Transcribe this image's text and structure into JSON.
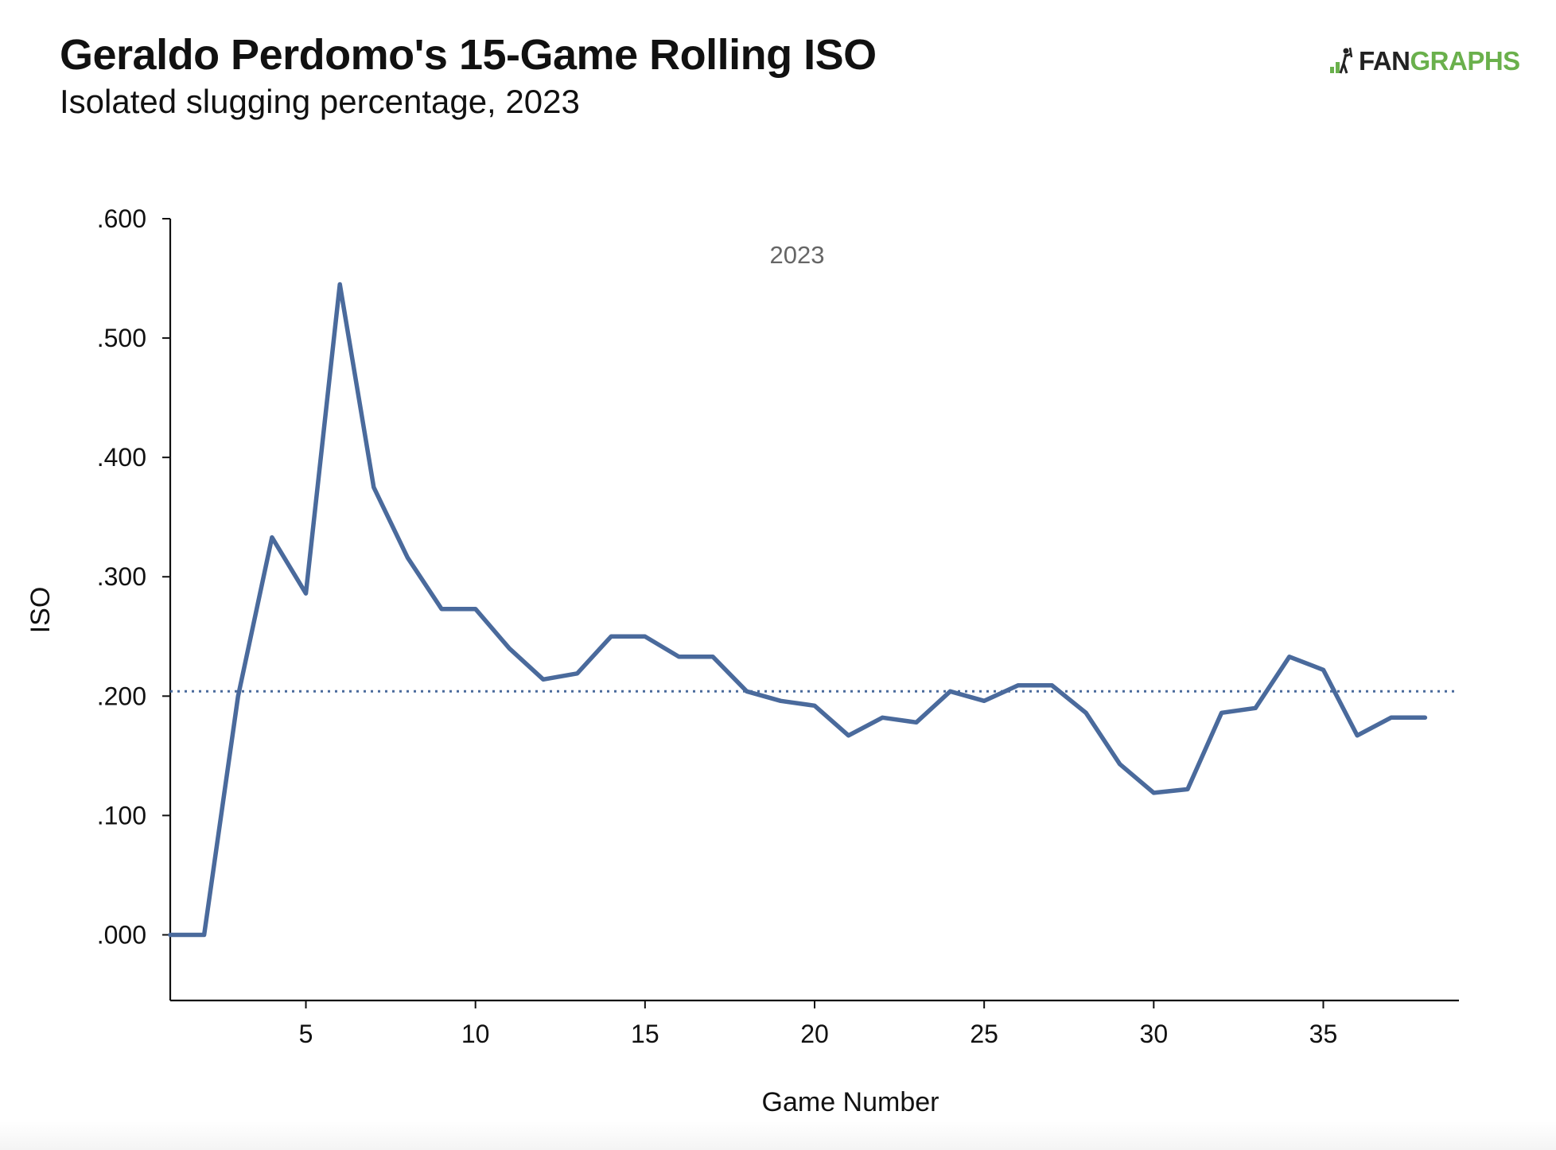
{
  "title": "Geraldo Perdomo's 15-Game Rolling ISO",
  "subtitle": "Isolated slugging percentage, 2023",
  "logo": {
    "text_dark": "FAN",
    "text_green": "GRAPHS",
    "icon": "fangraphs-batter-icon",
    "colors": {
      "dark": "#222222",
      "green": "#6ab04c"
    }
  },
  "chart_data": {
    "type": "line",
    "xlabel": "Game Number",
    "ylabel": "ISO",
    "xlim": [
      1,
      39
    ],
    "ylim": [
      -0.055,
      0.6
    ],
    "x_ticks": [
      5,
      10,
      15,
      20,
      25,
      30,
      35
    ],
    "x_tick_labels": [
      "5",
      "10",
      "15",
      "20",
      "25",
      "30",
      "35"
    ],
    "y_ticks": [
      0,
      0.1,
      0.2,
      0.3,
      0.4,
      0.5,
      0.6
    ],
    "y_tick_labels": [
      ".000",
      ".100",
      ".200",
      ".300",
      ".400",
      ".500",
      ".600"
    ],
    "annotation": "2023",
    "grid": false,
    "reference_line": {
      "y": 0.204,
      "style": "dotted",
      "color": "#4a6a9c"
    },
    "series": [
      {
        "color": "#4a6a9c",
        "x": [
          1,
          2,
          3,
          4,
          5,
          6,
          7,
          8,
          9,
          10,
          11,
          12,
          13,
          14,
          15,
          16,
          17,
          18,
          19,
          20,
          21,
          22,
          23,
          24,
          25,
          26,
          27,
          28,
          29,
          30,
          31,
          32,
          33,
          34,
          35,
          36,
          37,
          38
        ],
        "y": [
          0.0,
          0.0,
          0.2,
          0.333,
          0.286,
          0.545,
          0.375,
          0.316,
          0.273,
          0.273,
          0.24,
          0.214,
          0.219,
          0.25,
          0.25,
          0.233,
          0.233,
          0.204,
          0.196,
          0.192,
          0.167,
          0.182,
          0.178,
          0.204,
          0.196,
          0.209,
          0.209,
          0.186,
          0.143,
          0.119,
          0.122,
          0.186,
          0.19,
          0.233,
          0.222,
          0.167,
          0.182,
          0.182
        ]
      }
    ]
  }
}
